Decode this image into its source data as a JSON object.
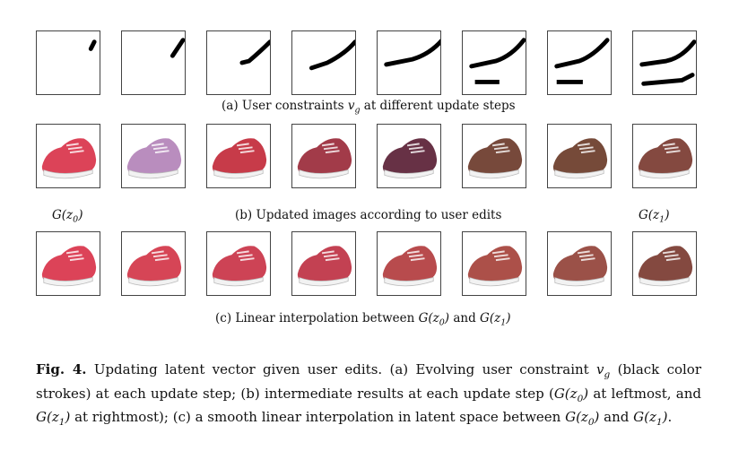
{
  "row_a": {
    "caption_prefix": "(a) User constraints ",
    "caption_var": "v",
    "caption_var_sub": "g",
    "caption_suffix": " at different update steps",
    "panel_icon": "user-stroke-constraint",
    "stroke_color": "#000000"
  },
  "row_b": {
    "left_label": "G(z",
    "left_label_sub": "0",
    "left_label_end": ")",
    "caption": "(b) Updated images according to user edits",
    "right_label": "G(z",
    "right_label_sub": "1",
    "right_label_end": ")",
    "panel_icon": "generated-shoe-image",
    "colors": [
      "#d9334a",
      "#b383b8",
      "#c22a3a",
      "#9a2a3a",
      "#5a1f35",
      "#6b3a2a",
      "#6a3b28",
      "#7a3a30"
    ]
  },
  "row_c": {
    "caption_prefix": "(c) Linear interpolation between ",
    "g0": "G(z",
    "g0_sub": "0",
    "g0_end": ")",
    "and": " and ",
    "g1": "G(z",
    "g1_sub": "1",
    "g1_end": ")",
    "panel_icon": "interpolated-shoe-image",
    "colors": [
      "#d9334a",
      "#d23548",
      "#c93346",
      "#be3143",
      "#b23c3e",
      "#a5413a",
      "#924238",
      "#7a3a30"
    ]
  },
  "caption": {
    "fig_label": "Fig. 4.",
    "text_1": " Updating latent vector given user edits. (a) Evolving user constraint ",
    "v": "v",
    "v_sub": "g",
    "text_2": " (black color strokes) at each update step; (b) intermediate results at each update step (",
    "g0": "G(z",
    "g0_sub": "0",
    "g0_end": ")",
    "text_3": " at leftmost, and ",
    "g1": "G(z",
    "g1_sub": "1",
    "g1_end": ")",
    "text_4": " at rightmost); (c) a smooth linear interpolation in latent space between ",
    "g0b": "G(z",
    "g0b_sub": "0",
    "g0b_end": ")",
    "and": " and ",
    "g1b": "G(z",
    "g1b_sub": "1",
    "g1b_end": ")",
    "end": "."
  }
}
